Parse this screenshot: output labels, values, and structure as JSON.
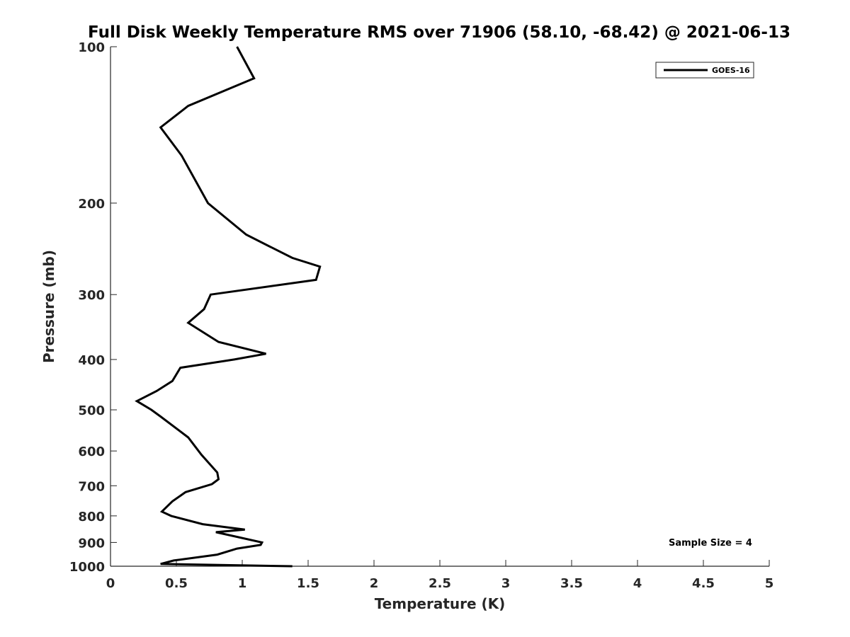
{
  "chart_data": {
    "type": "line",
    "title": "Full Disk Weekly Temperature RMS over 71906 (58.10, -68.42) @ 2021-06-13",
    "xlabel": "Temperature (K)",
    "ylabel": "Pressure (mb)",
    "xlim": [
      0,
      5
    ],
    "ylim": [
      1000,
      100
    ],
    "y_scale": "log",
    "y_reversed": true,
    "x_ticks": [
      0,
      0.5,
      1,
      1.5,
      2,
      2.5,
      3,
      3.5,
      4,
      4.5,
      5
    ],
    "x_tick_labels": [
      "0",
      "0.5",
      "1",
      "1.5",
      "2",
      "2.5",
      "3",
      "3.5",
      "4",
      "4.5",
      "5"
    ],
    "y_ticks": [
      100,
      200,
      300,
      400,
      500,
      600,
      700,
      800,
      900,
      1000
    ],
    "y_tick_labels": [
      "100",
      "200",
      "300",
      "400",
      "500",
      "600",
      "700",
      "800",
      "900",
      "1000"
    ],
    "grid": false,
    "legend_position": "top-right",
    "annotation": "Sample Size = 4",
    "series": [
      {
        "name": "GOES-16",
        "color": "#000000",
        "x": [
          0.96,
          1.09,
          0.59,
          0.38,
          0.54,
          0.74,
          1.03,
          1.38,
          1.59,
          1.56,
          0.76,
          0.71,
          0.59,
          0.82,
          1.18,
          0.94,
          0.53,
          0.47,
          0.35,
          0.2,
          0.31,
          0.38,
          0.59,
          0.69,
          0.81,
          0.82,
          0.77,
          0.57,
          0.47,
          0.39,
          0.46,
          0.7,
          1.02,
          0.8,
          1.15,
          1.14,
          0.96,
          0.81,
          0.48,
          0.38,
          1.38
        ],
        "y": [
          100,
          115,
          130,
          143,
          162,
          200,
          230,
          255,
          265,
          281,
          300,
          320,
          340,
          370,
          390,
          400,
          415,
          440,
          460,
          481,
          500,
          515,
          565,
          610,
          660,
          680,
          695,
          720,
          750,
          785,
          800,
          830,
          850,
          860,
          900,
          910,
          925,
          950,
          975,
          990,
          1000
        ]
      }
    ]
  }
}
